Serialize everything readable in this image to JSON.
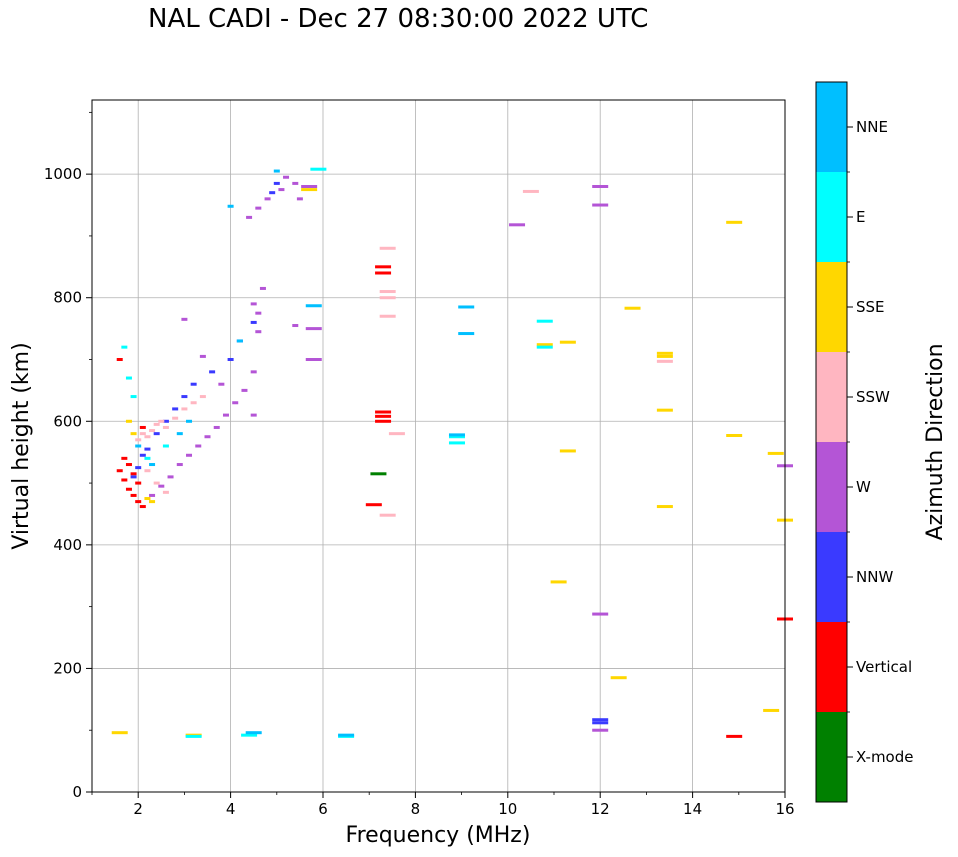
{
  "chart_data": {
    "type": "scatter",
    "title": "NAL CADI - Dec 27 08:30:00 2022 UTC",
    "xlabel": "Frequency (MHz)",
    "ylabel": "Virtual height (km)",
    "xlim": [
      1,
      16
    ],
    "ylim": [
      0,
      1120
    ],
    "xticks": [
      2,
      4,
      6,
      8,
      10,
      12,
      14,
      16
    ],
    "yticks": [
      0,
      200,
      400,
      600,
      800,
      1000
    ],
    "grid": true,
    "colorbar": {
      "label": "Azimuth Direction",
      "categories": [
        {
          "name": "X-mode",
          "color": "#008000"
        },
        {
          "name": "Vertical",
          "color": "#ff0000"
        },
        {
          "name": "NNW",
          "color": "#3a3aff"
        },
        {
          "name": "W",
          "color": "#b455d6"
        },
        {
          "name": "SSW",
          "color": "#ffb6c1"
        },
        {
          "name": "SSE",
          "color": "#ffd700"
        },
        {
          "name": "E",
          "color": "#00ffff"
        },
        {
          "name": "NNE",
          "color": "#00bfff"
        }
      ]
    },
    "series": [
      {
        "name": "X-mode",
        "points": [
          [
            7.2,
            515
          ]
        ]
      },
      {
        "name": "Vertical",
        "points": [
          [
            1.6,
            520
          ],
          [
            1.7,
            505
          ],
          [
            1.8,
            490
          ],
          [
            1.9,
            480
          ],
          [
            2.0,
            470
          ],
          [
            2.1,
            462
          ],
          [
            1.7,
            540
          ],
          [
            1.8,
            530
          ],
          [
            1.9,
            515
          ],
          [
            2.0,
            500
          ],
          [
            2.1,
            590
          ],
          [
            1.6,
            700
          ],
          [
            7.3,
            615
          ],
          [
            7.3,
            608
          ],
          [
            7.3,
            600
          ],
          [
            7.3,
            850
          ],
          [
            7.3,
            840
          ],
          [
            7.1,
            465
          ],
          [
            14.9,
            90
          ],
          [
            16.0,
            280
          ]
        ]
      },
      {
        "name": "NNW",
        "points": [
          [
            1.9,
            510
          ],
          [
            2.0,
            525
          ],
          [
            2.1,
            545
          ],
          [
            2.2,
            555
          ],
          [
            2.4,
            580
          ],
          [
            2.6,
            600
          ],
          [
            2.8,
            620
          ],
          [
            3.0,
            640
          ],
          [
            3.2,
            660
          ],
          [
            3.6,
            680
          ],
          [
            4.0,
            700
          ],
          [
            4.2,
            730
          ],
          [
            4.5,
            760
          ],
          [
            4.9,
            970
          ],
          [
            5.0,
            985
          ],
          [
            12.0,
            117
          ],
          [
            12.0,
            112
          ]
        ]
      },
      {
        "name": "W",
        "points": [
          [
            2.3,
            480
          ],
          [
            2.5,
            495
          ],
          [
            2.7,
            510
          ],
          [
            2.9,
            530
          ],
          [
            3.1,
            545
          ],
          [
            3.3,
            560
          ],
          [
            3.5,
            575
          ],
          [
            3.7,
            590
          ],
          [
            3.9,
            610
          ],
          [
            4.1,
            630
          ],
          [
            4.3,
            650
          ],
          [
            4.5,
            680
          ],
          [
            4.6,
            745
          ],
          [
            4.6,
            775
          ],
          [
            4.7,
            815
          ],
          [
            3.0,
            765
          ],
          [
            3.4,
            705
          ],
          [
            3.8,
            660
          ],
          [
            4.4,
            930
          ],
          [
            4.6,
            945
          ],
          [
            4.8,
            960
          ],
          [
            5.1,
            975
          ],
          [
            5.2,
            995
          ],
          [
            5.4,
            985
          ],
          [
            5.5,
            960
          ],
          [
            5.7,
            980
          ],
          [
            5.8,
            750
          ],
          [
            5.8,
            700
          ],
          [
            5.4,
            755
          ],
          [
            4.5,
            790
          ],
          [
            10.2,
            918
          ],
          [
            12.0,
            980
          ],
          [
            12.0,
            950
          ],
          [
            12.0,
            288
          ],
          [
            12.0,
            100
          ],
          [
            16.0,
            528
          ],
          [
            4.5,
            610
          ]
        ]
      },
      {
        "name": "SSW",
        "points": [
          [
            2.0,
            570
          ],
          [
            2.1,
            580
          ],
          [
            2.2,
            575
          ],
          [
            2.3,
            585
          ],
          [
            2.4,
            595
          ],
          [
            2.5,
            600
          ],
          [
            2.6,
            590
          ],
          [
            2.8,
            605
          ],
          [
            3.0,
            620
          ],
          [
            3.2,
            630
          ],
          [
            3.4,
            640
          ],
          [
            2.2,
            520
          ],
          [
            2.4,
            500
          ],
          [
            2.6,
            485
          ],
          [
            7.4,
            880
          ],
          [
            7.4,
            810
          ],
          [
            7.4,
            800
          ],
          [
            7.4,
            770
          ],
          [
            7.6,
            580
          ],
          [
            7.4,
            448
          ],
          [
            10.5,
            972
          ],
          [
            13.4,
            697
          ]
        ]
      },
      {
        "name": "SSE",
        "points": [
          [
            1.8,
            600
          ],
          [
            1.9,
            580
          ],
          [
            2.2,
            475
          ],
          [
            2.3,
            470
          ],
          [
            3.2,
            92
          ],
          [
            5.7,
            975
          ],
          [
            10.8,
            724
          ],
          [
            11.3,
            728
          ],
          [
            11.3,
            552
          ],
          [
            11.1,
            340
          ],
          [
            12.7,
            783
          ],
          [
            12.4,
            185
          ],
          [
            13.4,
            710
          ],
          [
            13.4,
            705
          ],
          [
            13.4,
            618
          ],
          [
            13.4,
            462
          ],
          [
            14.9,
            922
          ],
          [
            14.9,
            577
          ],
          [
            15.8,
            548
          ],
          [
            15.7,
            132
          ],
          [
            16.0,
            440
          ],
          [
            1.6,
            96
          ]
        ]
      },
      {
        "name": "E",
        "points": [
          [
            1.7,
            720
          ],
          [
            1.8,
            670
          ],
          [
            1.9,
            640
          ],
          [
            2.2,
            540
          ],
          [
            2.6,
            560
          ],
          [
            4.4,
            92
          ],
          [
            6.5,
            90
          ],
          [
            8.9,
            575
          ],
          [
            8.9,
            565
          ],
          [
            10.8,
            720
          ],
          [
            10.8,
            762
          ],
          [
            3.2,
            90
          ],
          [
            5.9,
            1008
          ]
        ]
      },
      {
        "name": "NNE",
        "points": [
          [
            2.0,
            560
          ],
          [
            2.3,
            530
          ],
          [
            2.9,
            580
          ],
          [
            3.1,
            600
          ],
          [
            4.0,
            948
          ],
          [
            4.2,
            730
          ],
          [
            5.0,
            1005
          ],
          [
            5.8,
            787
          ],
          [
            9.1,
            785
          ],
          [
            9.1,
            742
          ],
          [
            4.5,
            96
          ],
          [
            6.5,
            92
          ],
          [
            8.9,
            578
          ]
        ]
      }
    ]
  }
}
